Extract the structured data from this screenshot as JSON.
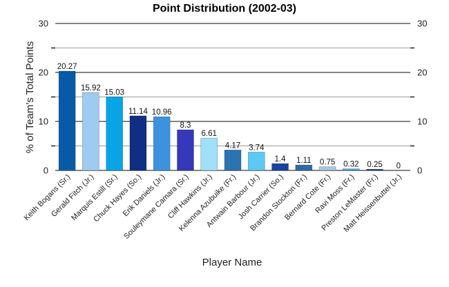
{
  "chart_data": {
    "type": "bar",
    "title": "Point Distribution (2002-03)",
    "xlabel": "Player Name",
    "ylabel": "% of Team's Total Points",
    "ylim": [
      0,
      30
    ],
    "major_ticks": [
      0,
      10,
      20,
      30
    ],
    "minor_ticks": [
      5,
      15,
      25
    ],
    "grid": true,
    "categories": [
      "Keith Bogans (Sr.)",
      "Gerald Fitch (Jr.)",
      "Marquis Estill (Sr.)",
      "Chuck Hayes (So.)",
      "Erik Daniels (Jr.)",
      "Souleymane Camara (Sr.)",
      "Cliff Hawkins (Jr.)",
      "Kelenna Azubuike (Fr.)",
      "Antwain Barbour (Jr.)",
      "Josh Carrier (So.)",
      "Brandon Stockton (Fr.)",
      "Bernard Cote (Fr.)",
      "Ravi Moss (Fr.)",
      "Preston LeMaster (Fr.)",
      "Matt Heissenbuttel (Jr.)"
    ],
    "values": [
      20.27,
      15.92,
      15.03,
      11.14,
      10.96,
      8.3,
      6.61,
      4.17,
      3.74,
      1.4,
      1.11,
      0.75,
      0.32,
      0.25,
      0
    ],
    "value_labels": [
      "20.27",
      "15.92",
      "15.03",
      "11.14",
      "10.96",
      "8.3",
      "6.61",
      "4.17",
      "3.74",
      "1.4",
      "1.11",
      "0.75",
      "0.32",
      "0.25",
      "0"
    ],
    "colors": [
      "#075aa5",
      "#9ecbf0",
      "#08a5e6",
      "#0f2e84",
      "#3d92df",
      "#3538b8",
      "#9fe0f8",
      "#2a74b0",
      "#5cc8f4",
      "#1844a0",
      "#2f6aa3",
      "#a6c6e2",
      "#3aa8e8",
      "#1f3a8c",
      "#9ec6ea"
    ]
  }
}
